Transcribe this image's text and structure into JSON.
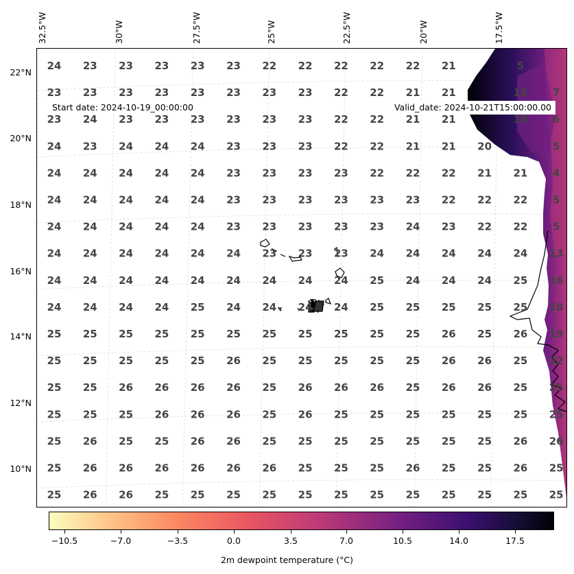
{
  "map": {
    "lon_labels": [
      "32.5°W",
      "30°W",
      "27.5°W",
      "25°W",
      "22.5°W",
      "20°W",
      "17.5°W"
    ],
    "lat_labels": [
      "22°N",
      "20°N",
      "18°N",
      "16°N",
      "14°N",
      "12°N",
      "10°N"
    ],
    "start_label": "Start date: 2024-10-19_00:00:00",
    "valid_label": "Valid_date: 2024-10-21T15:00:00.00",
    "grid_values": [
      [
        "24",
        "23",
        "23",
        "23",
        "23",
        "23",
        "22",
        "22",
        "22",
        "22",
        "22",
        "21",
        "",
        "5"
      ],
      [
        "23",
        "23",
        "23",
        "23",
        "23",
        "23",
        "23",
        "23",
        "22",
        "22",
        "21",
        "21",
        "",
        "15",
        "7"
      ],
      [
        "23",
        "24",
        "23",
        "23",
        "23",
        "23",
        "23",
        "23",
        "22",
        "22",
        "21",
        "21",
        "",
        "18",
        "6"
      ],
      [
        "24",
        "23",
        "24",
        "24",
        "24",
        "23",
        "23",
        "23",
        "22",
        "22",
        "21",
        "21",
        "20",
        "",
        "5"
      ],
      [
        "24",
        "24",
        "24",
        "24",
        "24",
        "23",
        "23",
        "23",
        "23",
        "22",
        "22",
        "22",
        "21",
        "21",
        "4"
      ],
      [
        "24",
        "24",
        "24",
        "24",
        "24",
        "23",
        "23",
        "23",
        "23",
        "23",
        "23",
        "22",
        "22",
        "22",
        "5"
      ],
      [
        "24",
        "24",
        "24",
        "24",
        "24",
        "23",
        "23",
        "23",
        "23",
        "23",
        "24",
        "23",
        "22",
        "22",
        "5"
      ],
      [
        "24",
        "24",
        "24",
        "24",
        "24",
        "24",
        "23",
        "23",
        "23",
        "24",
        "24",
        "24",
        "24",
        "24",
        "13"
      ],
      [
        "24",
        "24",
        "24",
        "24",
        "24",
        "24",
        "24",
        "24",
        "24",
        "25",
        "24",
        "24",
        "24",
        "25",
        "16"
      ],
      [
        "24",
        "24",
        "24",
        "24",
        "25",
        "24",
        "24",
        "24",
        "24",
        "25",
        "25",
        "25",
        "25",
        "25",
        "18"
      ],
      [
        "25",
        "25",
        "25",
        "25",
        "25",
        "25",
        "25",
        "25",
        "25",
        "25",
        "25",
        "26",
        "25",
        "26",
        "19"
      ],
      [
        "25",
        "25",
        "25",
        "25",
        "25",
        "26",
        "25",
        "25",
        "25",
        "25",
        "25",
        "26",
        "26",
        "25",
        "22"
      ],
      [
        "25",
        "25",
        "26",
        "26",
        "26",
        "26",
        "25",
        "26",
        "26",
        "26",
        "25",
        "26",
        "26",
        "25",
        "25"
      ],
      [
        "25",
        "25",
        "25",
        "26",
        "26",
        "26",
        "25",
        "26",
        "25",
        "25",
        "25",
        "25",
        "25",
        "25",
        "25"
      ],
      [
        "25",
        "26",
        "25",
        "25",
        "26",
        "26",
        "25",
        "25",
        "25",
        "25",
        "25",
        "25",
        "25",
        "26",
        "26"
      ],
      [
        "25",
        "26",
        "26",
        "26",
        "26",
        "26",
        "26",
        "25",
        "25",
        "25",
        "26",
        "25",
        "25",
        "26",
        "25"
      ],
      [
        "25",
        "26",
        "26",
        "25",
        "25",
        "25",
        "25",
        "25",
        "25",
        "25",
        "25",
        "25",
        "25",
        "25",
        "25"
      ]
    ],
    "ocean_color": "#ffffff",
    "land_colors": [
      "#fcfdbf",
      "#fe9f6d",
      "#de4968",
      "#8c2981",
      "#3b0f70",
      "#000004"
    ]
  },
  "colorbar": {
    "ticks": [
      "−10.5",
      "−7.0",
      "−3.5",
      "0.0",
      "3.5",
      "7.0",
      "10.5",
      "14.0",
      "17.5"
    ],
    "title": "2m dewpoint temperature ($^\\circ$C)",
    "title_display": "2m dewpoint temperature (°C)"
  }
}
